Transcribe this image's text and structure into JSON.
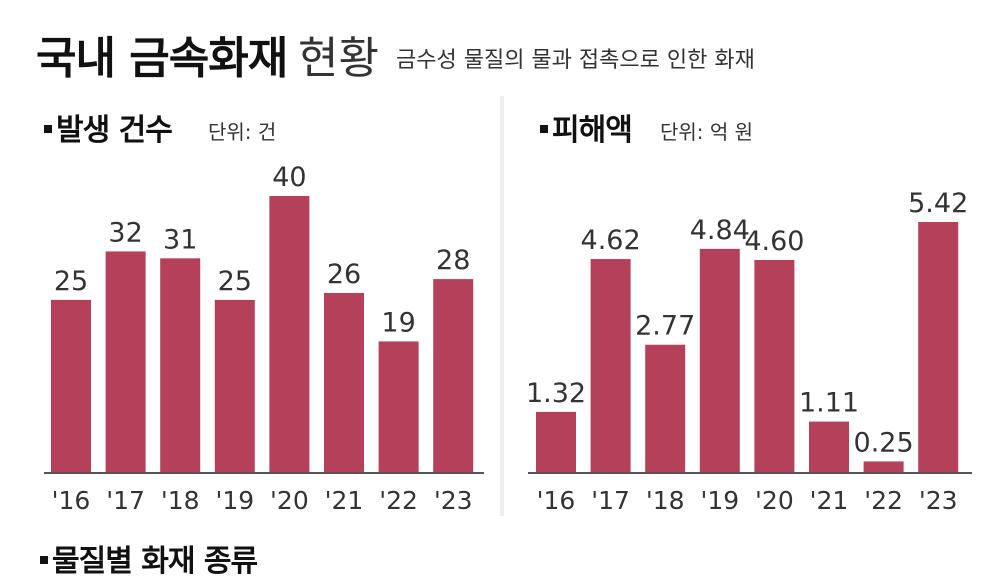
{
  "header": {
    "title_bold": "국내 금속화재",
    "title_light": "현황",
    "subtitle": "금수성 물질의 물과 접촉으로 인한 화재"
  },
  "colors": {
    "bar": "#b5405a",
    "axis": "#555555"
  },
  "chart_data": [
    {
      "type": "bar",
      "title": "발생 건수",
      "unit": "단위: 건",
      "categories": [
        "'16",
        "'17",
        "'18",
        "'19",
        "'20",
        "'21",
        "'22",
        "'23"
      ],
      "values": [
        25,
        32,
        31,
        25,
        40,
        26,
        19,
        28
      ],
      "value_labels": [
        "25",
        "32",
        "31",
        "25",
        "40",
        "26",
        "19",
        "28"
      ],
      "ylim": [
        0,
        40
      ]
    },
    {
      "type": "bar",
      "title": "피해액",
      "unit": "단위: 억 원",
      "categories": [
        "'16",
        "'17",
        "'18",
        "'19",
        "'20",
        "'21",
        "'22",
        "'23"
      ],
      "values": [
        1.32,
        4.62,
        2.77,
        4.84,
        4.6,
        1.11,
        0.25,
        5.42
      ],
      "value_labels": [
        "1.32",
        "4.62",
        "2.77",
        "4.84",
        "4.60",
        "1.11",
        "0.25",
        "5.42"
      ],
      "ylim": [
        0,
        5.42
      ]
    }
  ],
  "section3": {
    "title": "물질별 화재 종류"
  }
}
